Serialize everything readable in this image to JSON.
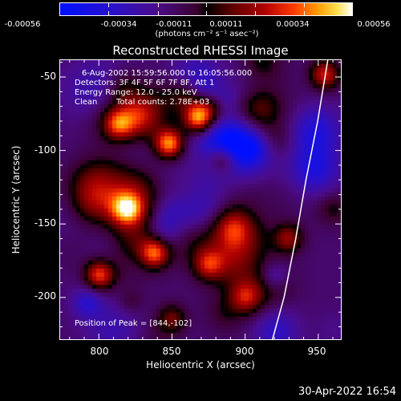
{
  "colorbar": {
    "ticks": [
      -0.00056,
      -0.00034,
      -0.00011,
      0.00011,
      0.00034,
      0.00056
    ],
    "tick_labels": [
      "-0.00056",
      "-0.00034",
      "-0.00011",
      "0.00011",
      "0.00034",
      "0.00056"
    ],
    "units": "(photons cm⁻² s⁻¹ asec⁻²)",
    "colors": [
      "#0010ff",
      "#4a0c8a",
      "#000000",
      "#b00000",
      "#ff9a00",
      "#ffffff"
    ]
  },
  "annotations": {
    "time_range": "6-Aug-2002 15:59:56.000 to 16:05:56.000",
    "detectors": "Detectors: 3F 4F 5F 6F 7F 8F, Att 1",
    "energy_range": "Energy Range: 12.0 - 25.0 keV",
    "method": "Clean",
    "total_counts": "Total counts: 2.78E+03",
    "peak": "Position of Peak = [844,-102]"
  },
  "chart_data": {
    "type": "heatmap",
    "title": "Reconstructed RHESSI Image",
    "xlabel": "Heliocentric X (arcsec)",
    "ylabel": "Heliocentric Y (arcsec)",
    "xlim": [
      773,
      966
    ],
    "ylim": [
      -229,
      -38
    ],
    "xticks": [
      800,
      850,
      900,
      950
    ],
    "yticks": [
      -50,
      -100,
      -150,
      -200
    ],
    "value_range": [
      -0.00056,
      0.00056
    ],
    "peak_position": [
      844,
      -102
    ],
    "bright_regions": [
      {
        "x": 848,
        "y": -95,
        "intensity": 0.00056
      },
      {
        "x": 868,
        "y": -78,
        "intensity": 0.0005
      },
      {
        "x": 885,
        "y": -105,
        "intensity": 0.00034
      },
      {
        "x": 813,
        "y": -82,
        "intensity": 0.00034
      },
      {
        "x": 800,
        "y": -185,
        "intensity": 0.00045
      },
      {
        "x": 838,
        "y": -170,
        "intensity": 0.00045
      },
      {
        "x": 820,
        "y": -140,
        "intensity": 0.00034
      },
      {
        "x": 875,
        "y": -178,
        "intensity": 0.0003
      },
      {
        "x": 955,
        "y": -48,
        "intensity": 0.0004
      },
      {
        "x": 930,
        "y": -160,
        "intensity": 0.0003
      },
      {
        "x": 900,
        "y": -200,
        "intensity": 0.00025
      },
      {
        "x": 850,
        "y": -215,
        "intensity": 0.00025
      }
    ],
    "limb_curve": [
      [
        919,
        -229
      ],
      [
        927,
        -200
      ],
      [
        935,
        -160
      ],
      [
        942,
        -120
      ],
      [
        950,
        -80
      ],
      [
        957,
        -38
      ]
    ]
  },
  "timestamp": "30-Apr-2022 16:54"
}
